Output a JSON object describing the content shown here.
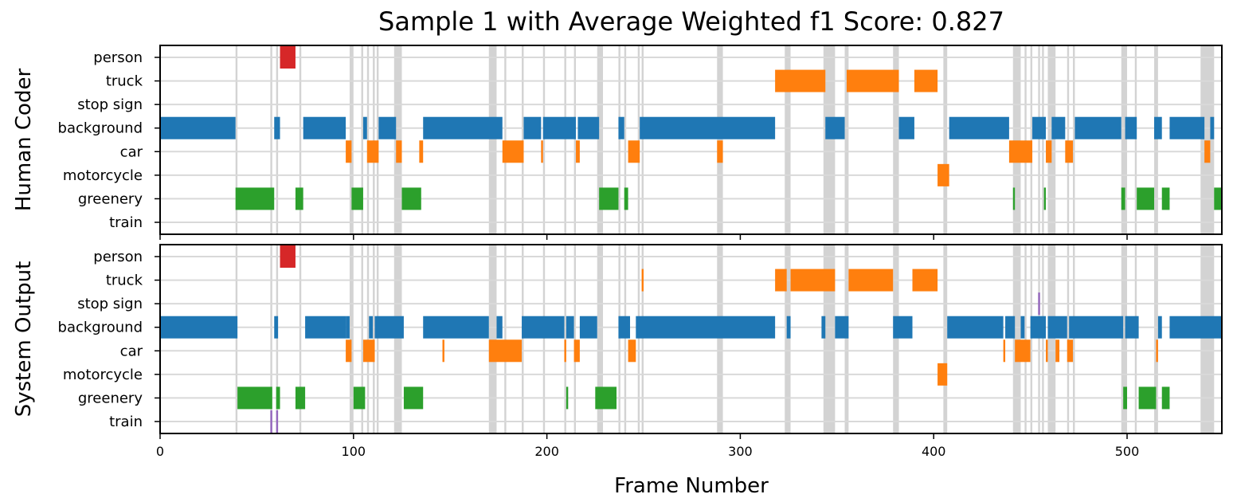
{
  "chart_data": {
    "type": "timeline",
    "title": "Sample 1 with Average Weighted f1 Score: 0.827",
    "xlabel": "Frame Number",
    "xlim": [
      0,
      549
    ],
    "xticks": [
      0,
      100,
      200,
      300,
      400,
      500
    ],
    "categories": [
      "person",
      "truck",
      "stop sign",
      "background",
      "car",
      "motorcycle",
      "greenery",
      "train"
    ],
    "colors": {
      "person": "#d62728",
      "truck": "#ff7f0e",
      "stop sign": "#9467bd",
      "background": "#1f77b4",
      "car": "#ff7f0e",
      "motorcycle": "#ff7f0e",
      "greenery": "#2ca02c",
      "train": "#9467bd",
      "mismatch": "#d3d3d3",
      "gridline": "#d9d9d9"
    },
    "mismatch_frames": [
      [
        39,
        40
      ],
      [
        57,
        58
      ],
      [
        60,
        61
      ],
      [
        72,
        73
      ],
      [
        98,
        100
      ],
      [
        104,
        105
      ],
      [
        107,
        108
      ],
      [
        110,
        111
      ],
      [
        112,
        113
      ],
      [
        121,
        125
      ],
      [
        170,
        174
      ],
      [
        178,
        179
      ],
      [
        187,
        188
      ],
      [
        198,
        199
      ],
      [
        209,
        210
      ],
      [
        214,
        215
      ],
      [
        226,
        229
      ],
      [
        237,
        238
      ],
      [
        240,
        241
      ],
      [
        247,
        248
      ],
      [
        249,
        250
      ],
      [
        288,
        291
      ],
      [
        323,
        326
      ],
      [
        343,
        349
      ],
      [
        354,
        356
      ],
      [
        379,
        382
      ],
      [
        405,
        407
      ],
      [
        441,
        445
      ],
      [
        447,
        448
      ],
      [
        450,
        451
      ],
      [
        454,
        455
      ],
      [
        456,
        457
      ],
      [
        459,
        463
      ],
      [
        469,
        470
      ],
      [
        472,
        473
      ],
      [
        497,
        500
      ],
      [
        504,
        505
      ],
      [
        514,
        516
      ],
      [
        538,
        545
      ]
    ],
    "panels": [
      {
        "ylabel": "Human Coder",
        "segments": [
          {
            "label": "person",
            "start": 62,
            "end": 70
          },
          {
            "label": "truck",
            "start": 318,
            "end": 344
          },
          {
            "label": "truck",
            "start": 355,
            "end": 382
          },
          {
            "label": "truck",
            "start": 390,
            "end": 402
          },
          {
            "label": "background",
            "start": 0,
            "end": 39
          },
          {
            "label": "background",
            "start": 59,
            "end": 62
          },
          {
            "label": "background",
            "start": 74,
            "end": 96
          },
          {
            "label": "background",
            "start": 105,
            "end": 107
          },
          {
            "label": "background",
            "start": 113,
            "end": 122
          },
          {
            "label": "background",
            "start": 136,
            "end": 177
          },
          {
            "label": "background",
            "start": 188,
            "end": 197
          },
          {
            "label": "background",
            "start": 198,
            "end": 215
          },
          {
            "label": "background",
            "start": 216,
            "end": 227
          },
          {
            "label": "background",
            "start": 237,
            "end": 240
          },
          {
            "label": "background",
            "start": 248,
            "end": 318
          },
          {
            "label": "background",
            "start": 344,
            "end": 354
          },
          {
            "label": "background",
            "start": 382,
            "end": 390
          },
          {
            "label": "background",
            "start": 408,
            "end": 439
          },
          {
            "label": "background",
            "start": 451,
            "end": 458
          },
          {
            "label": "background",
            "start": 461,
            "end": 468
          },
          {
            "label": "background",
            "start": 473,
            "end": 497
          },
          {
            "label": "background",
            "start": 499,
            "end": 505
          },
          {
            "label": "background",
            "start": 514,
            "end": 518
          },
          {
            "label": "background",
            "start": 522,
            "end": 540
          },
          {
            "label": "background",
            "start": 543,
            "end": 545
          },
          {
            "label": "car",
            "start": 96,
            "end": 99
          },
          {
            "label": "car",
            "start": 107,
            "end": 113
          },
          {
            "label": "car",
            "start": 122,
            "end": 125
          },
          {
            "label": "car",
            "start": 134,
            "end": 136
          },
          {
            "label": "car",
            "start": 177,
            "end": 188
          },
          {
            "label": "car",
            "start": 197,
            "end": 198
          },
          {
            "label": "car",
            "start": 215,
            "end": 217
          },
          {
            "label": "car",
            "start": 242,
            "end": 248
          },
          {
            "label": "car",
            "start": 288,
            "end": 291
          },
          {
            "label": "car",
            "start": 439,
            "end": 451
          },
          {
            "label": "car",
            "start": 458,
            "end": 461
          },
          {
            "label": "car",
            "start": 468,
            "end": 472
          },
          {
            "label": "car",
            "start": 540,
            "end": 543
          },
          {
            "label": "motorcycle",
            "start": 402,
            "end": 408
          },
          {
            "label": "greenery",
            "start": 39,
            "end": 59
          },
          {
            "label": "greenery",
            "start": 70,
            "end": 74
          },
          {
            "label": "greenery",
            "start": 99,
            "end": 105
          },
          {
            "label": "greenery",
            "start": 125,
            "end": 135
          },
          {
            "label": "greenery",
            "start": 227,
            "end": 237
          },
          {
            "label": "greenery",
            "start": 240,
            "end": 242
          },
          {
            "label": "greenery",
            "start": 441,
            "end": 442
          },
          {
            "label": "greenery",
            "start": 457,
            "end": 458
          },
          {
            "label": "greenery",
            "start": 497,
            "end": 499
          },
          {
            "label": "greenery",
            "start": 505,
            "end": 514
          },
          {
            "label": "greenery",
            "start": 518,
            "end": 522
          },
          {
            "label": "greenery",
            "start": 545,
            "end": 549
          }
        ]
      },
      {
        "ylabel": "System Output",
        "segments": [
          {
            "label": "person",
            "start": 62,
            "end": 70
          },
          {
            "label": "truck",
            "start": 249,
            "end": 250
          },
          {
            "label": "truck",
            "start": 318,
            "end": 324
          },
          {
            "label": "truck",
            "start": 326,
            "end": 349
          },
          {
            "label": "truck",
            "start": 356,
            "end": 379
          },
          {
            "label": "truck",
            "start": 389,
            "end": 402
          },
          {
            "label": "stop sign",
            "start": 454,
            "end": 455
          },
          {
            "label": "background",
            "start": 0,
            "end": 40
          },
          {
            "label": "background",
            "start": 59,
            "end": 61
          },
          {
            "label": "background",
            "start": 75,
            "end": 96
          },
          {
            "label": "background",
            "start": 96,
            "end": 98
          },
          {
            "label": "background",
            "start": 108,
            "end": 110
          },
          {
            "label": "background",
            "start": 111,
            "end": 126
          },
          {
            "label": "background",
            "start": 136,
            "end": 170
          },
          {
            "label": "background",
            "start": 174,
            "end": 177
          },
          {
            "label": "background",
            "start": 187,
            "end": 209
          },
          {
            "label": "background",
            "start": 210,
            "end": 214
          },
          {
            "label": "background",
            "start": 217,
            "end": 226
          },
          {
            "label": "background",
            "start": 237,
            "end": 243
          },
          {
            "label": "background",
            "start": 246,
            "end": 318
          },
          {
            "label": "background",
            "start": 324,
            "end": 326
          },
          {
            "label": "background",
            "start": 342,
            "end": 344
          },
          {
            "label": "background",
            "start": 349,
            "end": 356
          },
          {
            "label": "background",
            "start": 379,
            "end": 389
          },
          {
            "label": "background",
            "start": 407,
            "end": 436
          },
          {
            "label": "background",
            "start": 437,
            "end": 442
          },
          {
            "label": "background",
            "start": 445,
            "end": 447
          },
          {
            "label": "background",
            "start": 450,
            "end": 458
          },
          {
            "label": "background",
            "start": 459,
            "end": 469
          },
          {
            "label": "background",
            "start": 470,
            "end": 498
          },
          {
            "label": "background",
            "start": 499,
            "end": 506
          },
          {
            "label": "background",
            "start": 516,
            "end": 518
          },
          {
            "label": "background",
            "start": 522,
            "end": 549
          },
          {
            "label": "car",
            "start": 96,
            "end": 99
          },
          {
            "label": "car",
            "start": 105,
            "end": 111
          },
          {
            "label": "car",
            "start": 146,
            "end": 147
          },
          {
            "label": "car",
            "start": 170,
            "end": 187
          },
          {
            "label": "car",
            "start": 209,
            "end": 210
          },
          {
            "label": "car",
            "start": 214,
            "end": 217
          },
          {
            "label": "car",
            "start": 242,
            "end": 246
          },
          {
            "label": "car",
            "start": 436,
            "end": 437
          },
          {
            "label": "car",
            "start": 442,
            "end": 450
          },
          {
            "label": "car",
            "start": 458,
            "end": 459
          },
          {
            "label": "car",
            "start": 463,
            "end": 465
          },
          {
            "label": "car",
            "start": 469,
            "end": 472
          },
          {
            "label": "car",
            "start": 515,
            "end": 516
          },
          {
            "label": "motorcycle",
            "start": 402,
            "end": 407
          },
          {
            "label": "greenery",
            "start": 40,
            "end": 58
          },
          {
            "label": "greenery",
            "start": 60,
            "end": 62
          },
          {
            "label": "greenery",
            "start": 70,
            "end": 75
          },
          {
            "label": "greenery",
            "start": 100,
            "end": 106
          },
          {
            "label": "greenery",
            "start": 126,
            "end": 136
          },
          {
            "label": "greenery",
            "start": 210,
            "end": 211
          },
          {
            "label": "greenery",
            "start": 225,
            "end": 236
          },
          {
            "label": "greenery",
            "start": 498,
            "end": 500
          },
          {
            "label": "greenery",
            "start": 506,
            "end": 515
          },
          {
            "label": "greenery",
            "start": 518,
            "end": 522
          },
          {
            "label": "train",
            "start": 57,
            "end": 58
          },
          {
            "label": "train",
            "start": 60,
            "end": 61
          }
        ]
      }
    ]
  }
}
